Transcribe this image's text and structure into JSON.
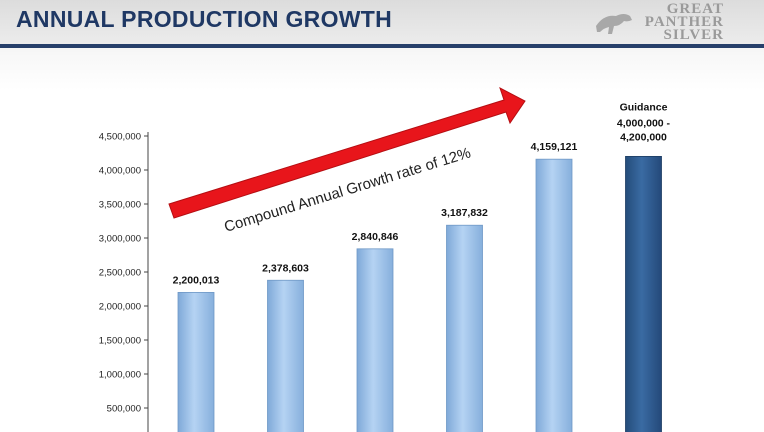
{
  "header": {
    "title": "ANNUAL PRODUCTION GROWTH"
  },
  "logo": {
    "lines": [
      "GREAT",
      "PANTHER",
      "SILVER"
    ]
  },
  "annotation": {
    "text": "Compound Annual Growth rate of 12%",
    "arrow_color": "#e8151b"
  },
  "colors": {
    "bar": "#9cc3ec",
    "guidance_bar": "#2f5f94",
    "header_text": "#1f3864"
  },
  "chart_data": {
    "type": "bar",
    "title": "",
    "xlabel": "",
    "ylabel": "",
    "ylim": [
      0,
      4500000
    ],
    "grid": false,
    "yticks": [
      "500,000",
      "1,000,000",
      "1,500,000",
      "2,000,000",
      "2,500,000",
      "3,000,000",
      "3,500,000",
      "4,000,000",
      "4,500,000"
    ],
    "ytick_values": [
      500000,
      1000000,
      1500000,
      2000000,
      2500000,
      3000000,
      3500000,
      4000000,
      4500000
    ],
    "values": [
      2200013,
      2378603,
      2840846,
      3187832,
      4159121,
      4200000
    ],
    "value_labels": [
      "2,200,013",
      "2,378,603",
      "2,840,846",
      "3,187,832",
      "4,159,121",
      "4,000,000 -\n4,200,000"
    ],
    "guidance_label": "Guidance",
    "guidance_index": 5
  }
}
